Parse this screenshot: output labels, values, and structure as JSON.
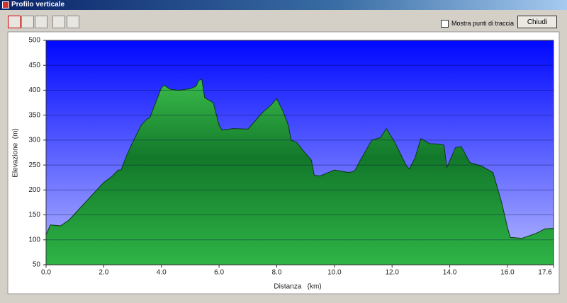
{
  "window": {
    "title": "Profilo verticale",
    "checkbox": "Mostra punti di traccia",
    "button": "Chiudi"
  },
  "chart_data": {
    "type": "area",
    "xlabel": "Distanza   (km)",
    "ylabel": "Elevazione  (m)",
    "x": [
      0.0,
      0.15,
      0.5,
      0.8,
      1.2,
      1.6,
      2.0,
      2.3,
      2.5,
      2.6,
      2.8,
      3.0,
      3.3,
      3.5,
      3.6,
      3.8,
      4.0,
      4.1,
      4.3,
      4.6,
      5.0,
      5.2,
      5.3,
      5.4,
      5.5,
      5.8,
      6.0,
      6.1,
      6.5,
      7.0,
      7.2,
      7.5,
      7.8,
      8.0,
      8.2,
      8.4,
      8.5,
      8.7,
      8.9,
      9.2,
      9.3,
      9.5,
      10.0,
      10.5,
      10.7,
      10.9,
      11.3,
      11.6,
      11.8,
      12.1,
      12.5,
      12.6,
      12.8,
      13.0,
      13.3,
      13.6,
      13.8,
      13.9,
      14.2,
      14.4,
      14.7,
      15.1,
      15.5,
      15.8,
      16.0,
      16.1,
      16.5,
      17.0,
      17.3,
      17.6
    ],
    "values": [
      110,
      130,
      128,
      140,
      165,
      190,
      215,
      228,
      240,
      240,
      270,
      295,
      330,
      342,
      345,
      375,
      405,
      410,
      402,
      400,
      403,
      408,
      420,
      422,
      385,
      375,
      330,
      320,
      323,
      322,
      335,
      355,
      370,
      383,
      360,
      330,
      300,
      295,
      280,
      260,
      230,
      228,
      240,
      235,
      238,
      260,
      300,
      305,
      323,
      295,
      248,
      242,
      265,
      303,
      293,
      292,
      290,
      245,
      285,
      287,
      255,
      248,
      235,
      175,
      125,
      105,
      103,
      113,
      122,
      123
    ],
    "xlim": [
      0,
      17.6
    ],
    "ylim": [
      50,
      500
    ],
    "xticks": [
      {
        "value": 0,
        "label": "0.0"
      },
      {
        "value": 2,
        "label": "2.0"
      },
      {
        "value": 4,
        "label": "4.0"
      },
      {
        "value": 6,
        "label": "6.0"
      },
      {
        "value": 8,
        "label": "8.0"
      },
      {
        "value": 10,
        "label": "10.0"
      },
      {
        "value": 12,
        "label": "12.0"
      },
      {
        "value": 14,
        "label": "14.0"
      },
      {
        "value": 16,
        "label": "16.0"
      },
      {
        "value": 17.6,
        "label": "17.6"
      }
    ],
    "yticks": [
      50,
      100,
      150,
      200,
      250,
      300,
      350,
      400,
      450,
      500
    ],
    "grid": true,
    "color": "#22a33c"
  }
}
